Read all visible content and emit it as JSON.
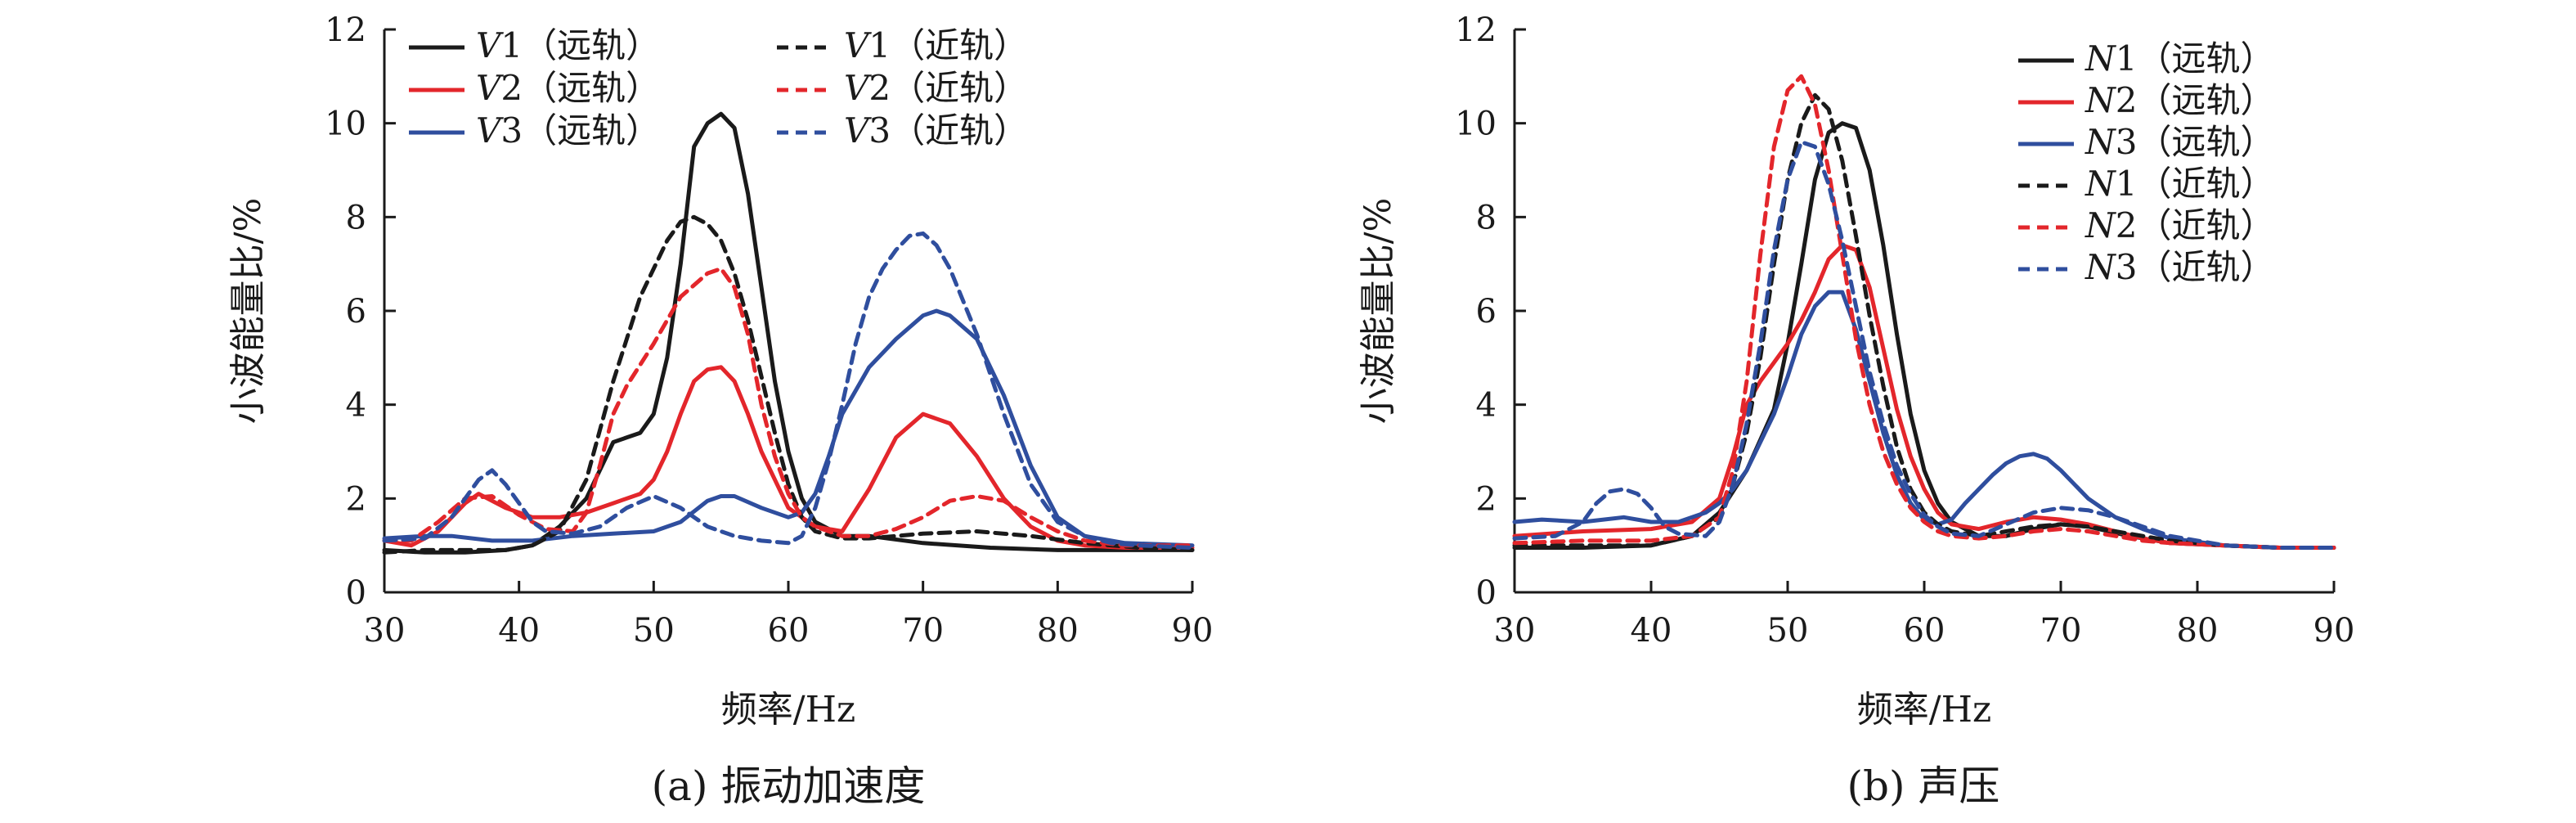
{
  "colors": {
    "black": "#1a1a1a",
    "red": "#e3262b",
    "blue": "#2f4e9e"
  },
  "chart_data": [
    {
      "type": "line",
      "caption": "(a) 振动加速度",
      "xlabel": "频率/Hz",
      "ylabel": "小波能量比/%",
      "xlim": [
        30,
        90
      ],
      "ylim": [
        0,
        12
      ],
      "xticks": [
        "30",
        "40",
        "50",
        "60",
        "70",
        "80",
        "90"
      ],
      "yticks": [
        "0",
        "2",
        "4",
        "6",
        "8",
        "10",
        "12"
      ],
      "legend": [
        {
          "var": "V",
          "idx": "1",
          "note": "（远轨）"
        },
        {
          "var": "V",
          "idx": "2",
          "note": "（远轨）"
        },
        {
          "var": "V",
          "idx": "3",
          "note": "（远轨）"
        },
        {
          "var": "V",
          "idx": "1",
          "note": "（近轨）"
        },
        {
          "var": "V",
          "idx": "2",
          "note": "（近轨）"
        },
        {
          "var": "V",
          "idx": "3",
          "note": "（近轨）"
        }
      ],
      "series": [
        {
          "name": "V1（远轨）",
          "color": "#1a1a1a",
          "dash": "solid",
          "x": [
            30,
            33,
            36,
            39,
            41,
            43,
            45,
            47,
            48,
            49,
            50,
            51,
            52,
            53,
            54,
            55,
            56,
            57,
            58,
            59,
            60,
            61,
            62,
            64,
            66,
            70,
            75,
            80,
            90
          ],
          "y": [
            0.9,
            0.85,
            0.85,
            0.9,
            1.0,
            1.4,
            2.0,
            3.2,
            3.3,
            3.4,
            3.8,
            5.0,
            7.0,
            9.5,
            10.0,
            10.2,
            9.9,
            8.5,
            6.5,
            4.5,
            3.0,
            2.0,
            1.5,
            1.2,
            1.2,
            1.05,
            0.95,
            0.9,
            0.9
          ]
        },
        {
          "name": "V2（远轨）",
          "color": "#e3262b",
          "dash": "solid",
          "x": [
            30,
            32,
            34,
            36,
            37,
            39,
            41,
            43,
            45,
            47,
            49,
            50,
            51,
            52,
            53,
            54,
            55,
            56,
            57,
            58,
            60,
            62,
            64,
            66,
            68,
            70,
            72,
            74,
            76,
            78,
            80,
            82,
            85,
            90
          ],
          "y": [
            1.1,
            1.0,
            1.3,
            1.9,
            2.1,
            1.8,
            1.6,
            1.6,
            1.7,
            1.9,
            2.1,
            2.4,
            3.0,
            3.8,
            4.5,
            4.75,
            4.8,
            4.5,
            3.8,
            3.0,
            1.8,
            1.4,
            1.3,
            2.2,
            3.3,
            3.8,
            3.6,
            2.9,
            2.0,
            1.4,
            1.1,
            1.0,
            0.95,
            0.95
          ]
        },
        {
          "name": "V3（远轨）",
          "color": "#2f4e9e",
          "dash": "solid",
          "x": [
            30,
            33,
            35,
            38,
            41,
            44,
            47,
            50,
            52,
            54,
            55,
            56,
            58,
            60,
            61,
            62,
            63,
            64,
            66,
            68,
            70,
            71,
            72,
            74,
            76,
            78,
            80,
            82,
            85,
            90
          ],
          "y": [
            1.15,
            1.2,
            1.2,
            1.1,
            1.1,
            1.2,
            1.25,
            1.3,
            1.5,
            1.95,
            2.05,
            2.05,
            1.8,
            1.6,
            1.7,
            2.1,
            2.9,
            3.8,
            4.8,
            5.4,
            5.9,
            6.0,
            5.9,
            5.4,
            4.2,
            2.7,
            1.6,
            1.2,
            1.05,
            1.0
          ]
        },
        {
          "name": "V1（近轨）",
          "color": "#1a1a1a",
          "dash": "dashed",
          "x": [
            30,
            33,
            36,
            39,
            41,
            43,
            45,
            47,
            49,
            51,
            52,
            53,
            54,
            55,
            56,
            57,
            58,
            59,
            60,
            61,
            62,
            64,
            66,
            70,
            74,
            78,
            82,
            86,
            90
          ],
          "y": [
            0.85,
            0.9,
            0.9,
            0.9,
            1.0,
            1.3,
            2.4,
            4.5,
            6.3,
            7.5,
            7.9,
            8.0,
            7.85,
            7.5,
            6.8,
            5.8,
            4.6,
            3.4,
            2.3,
            1.6,
            1.3,
            1.15,
            1.15,
            1.25,
            1.3,
            1.2,
            1.05,
            0.95,
            0.9
          ]
        },
        {
          "name": "V2（近轨）",
          "color": "#e3262b",
          "dash": "dashed",
          "x": [
            30,
            32,
            34,
            36,
            38,
            40,
            42,
            44,
            45,
            46,
            47,
            48,
            50,
            52,
            54,
            55,
            56,
            57,
            58,
            59,
            60,
            61,
            62,
            64,
            66,
            68,
            70,
            72,
            74,
            76,
            78,
            80,
            82,
            85,
            90
          ],
          "y": [
            1.1,
            1.1,
            1.5,
            2.0,
            2.05,
            1.65,
            1.35,
            1.3,
            1.7,
            2.7,
            3.8,
            4.4,
            5.3,
            6.3,
            6.8,
            6.9,
            6.5,
            5.5,
            4.0,
            2.9,
            2.1,
            1.6,
            1.4,
            1.2,
            1.2,
            1.35,
            1.6,
            1.95,
            2.05,
            1.95,
            1.6,
            1.3,
            1.1,
            1.0,
            1.0
          ]
        },
        {
          "name": "V3（近轨）",
          "color": "#2f4e9e",
          "dash": "dashed",
          "x": [
            30,
            33,
            35,
            36,
            37,
            38,
            39,
            40,
            41,
            42,
            44,
            46,
            48,
            50,
            52,
            54,
            56,
            58,
            60,
            61,
            62,
            63,
            64,
            65,
            66,
            67,
            68,
            69,
            70,
            71,
            72,
            74,
            76,
            78,
            80,
            82,
            84,
            86,
            90
          ],
          "y": [
            1.1,
            1.15,
            1.6,
            2.0,
            2.4,
            2.6,
            2.3,
            1.9,
            1.5,
            1.3,
            1.25,
            1.4,
            1.8,
            2.05,
            1.8,
            1.4,
            1.2,
            1.1,
            1.05,
            1.2,
            1.8,
            2.8,
            4.0,
            5.3,
            6.3,
            6.9,
            7.3,
            7.6,
            7.65,
            7.4,
            6.9,
            5.5,
            3.8,
            2.3,
            1.5,
            1.2,
            1.05,
            1.0,
            0.95
          ]
        }
      ]
    },
    {
      "type": "line",
      "caption": "(b) 声压",
      "xlabel": "频率/Hz",
      "ylabel": "小波能量比/%",
      "xlim": [
        30,
        90
      ],
      "ylim": [
        0,
        12
      ],
      "xticks": [
        "30",
        "40",
        "50",
        "60",
        "70",
        "80",
        "90"
      ],
      "yticks": [
        "0",
        "2",
        "4",
        "6",
        "8",
        "10",
        "12"
      ],
      "legend": [
        {
          "var": "N",
          "idx": "1",
          "note": "（远轨）"
        },
        {
          "var": "N",
          "idx": "2",
          "note": "（远轨）"
        },
        {
          "var": "N",
          "idx": "3",
          "note": "（远轨）"
        },
        {
          "var": "N",
          "idx": "1",
          "note": "（近轨）"
        },
        {
          "var": "N",
          "idx": "2",
          "note": "（近轨）"
        },
        {
          "var": "N",
          "idx": "3",
          "note": "（近轨）"
        }
      ],
      "series": [
        {
          "name": "N1（远轨）",
          "color": "#1a1a1a",
          "dash": "solid",
          "x": [
            30,
            35,
            40,
            43,
            45,
            47,
            49,
            50,
            51,
            52,
            53,
            54,
            55,
            56,
            57,
            58,
            59,
            60,
            61,
            62,
            64,
            66,
            68,
            70,
            72,
            75,
            78,
            82,
            86,
            90
          ],
          "y": [
            0.95,
            0.95,
            1.0,
            1.2,
            1.7,
            2.6,
            3.9,
            5.3,
            7.0,
            8.8,
            9.8,
            10.0,
            9.9,
            9.0,
            7.4,
            5.5,
            3.8,
            2.6,
            1.9,
            1.5,
            1.2,
            1.2,
            1.35,
            1.45,
            1.4,
            1.2,
            1.05,
            1.0,
            0.95,
            0.95
          ]
        },
        {
          "name": "N2（远轨）",
          "color": "#e3262b",
          "dash": "solid",
          "x": [
            30,
            35,
            40,
            43,
            45,
            46,
            47,
            48,
            49,
            50,
            51,
            52,
            53,
            54,
            55,
            56,
            57,
            58,
            59,
            60,
            61,
            62,
            64,
            66,
            68,
            70,
            72,
            74,
            76,
            78,
            82,
            86,
            90
          ],
          "y": [
            1.2,
            1.3,
            1.35,
            1.5,
            2.0,
            2.9,
            4.0,
            4.5,
            4.9,
            5.3,
            5.8,
            6.4,
            7.1,
            7.4,
            7.3,
            6.5,
            5.2,
            3.9,
            2.9,
            2.2,
            1.7,
            1.45,
            1.35,
            1.5,
            1.6,
            1.55,
            1.45,
            1.3,
            1.15,
            1.05,
            1.0,
            0.95,
            0.95
          ]
        },
        {
          "name": "N3（远轨）",
          "color": "#2f4e9e",
          "dash": "solid",
          "x": [
            30,
            32,
            35,
            38,
            40,
            42,
            44,
            45,
            46,
            47,
            48,
            49,
            50,
            51,
            52,
            53,
            54,
            55,
            56,
            57,
            58,
            59,
            60,
            61,
            62,
            63,
            64,
            65,
            66,
            67,
            68,
            69,
            70,
            72,
            74,
            76,
            78,
            82,
            86,
            90
          ],
          "y": [
            1.5,
            1.55,
            1.5,
            1.6,
            1.5,
            1.5,
            1.7,
            1.9,
            2.2,
            2.6,
            3.2,
            3.8,
            4.6,
            5.5,
            6.1,
            6.4,
            6.4,
            5.6,
            4.5,
            3.4,
            2.5,
            1.9,
            1.55,
            1.45,
            1.55,
            1.9,
            2.2,
            2.5,
            2.75,
            2.9,
            2.95,
            2.85,
            2.6,
            2.0,
            1.6,
            1.35,
            1.15,
            1.0,
            0.95,
            0.95
          ]
        },
        {
          "name": "N1（近轨）",
          "color": "#1a1a1a",
          "dash": "dashed",
          "x": [
            30,
            35,
            40,
            43,
            45,
            46,
            47,
            48,
            49,
            50,
            51,
            52,
            53,
            54,
            55,
            56,
            57,
            58,
            59,
            60,
            61,
            62,
            64,
            66,
            68,
            70,
            72,
            74,
            76,
            78,
            82,
            86,
            90
          ],
          "y": [
            1.0,
            1.0,
            1.0,
            1.2,
            1.6,
            2.3,
            3.4,
            5.0,
            7.0,
            8.8,
            10.0,
            10.6,
            10.3,
            9.2,
            7.6,
            5.9,
            4.4,
            3.1,
            2.2,
            1.7,
            1.45,
            1.3,
            1.2,
            1.3,
            1.4,
            1.45,
            1.4,
            1.3,
            1.2,
            1.1,
            1.0,
            0.95,
            0.95
          ]
        },
        {
          "name": "N2（近轨）",
          "color": "#e3262b",
          "dash": "dashed",
          "x": [
            30,
            35,
            40,
            43,
            45,
            46,
            47,
            48,
            49,
            50,
            51,
            52,
            53,
            54,
            55,
            56,
            57,
            58,
            59,
            60,
            61,
            62,
            64,
            66,
            68,
            70,
            72,
            74,
            76,
            78,
            82,
            86,
            90
          ],
          "y": [
            1.05,
            1.1,
            1.1,
            1.2,
            1.6,
            2.6,
            4.5,
            7.2,
            9.5,
            10.7,
            11.0,
            10.4,
            9.0,
            7.2,
            5.4,
            4.0,
            3.0,
            2.3,
            1.8,
            1.5,
            1.3,
            1.2,
            1.15,
            1.2,
            1.3,
            1.35,
            1.3,
            1.2,
            1.1,
            1.05,
            1.0,
            0.95,
            0.95
          ]
        },
        {
          "name": "N3（近轨）",
          "color": "#2f4e9e",
          "dash": "dashed",
          "x": [
            30,
            33,
            35,
            36,
            37,
            38,
            39,
            40,
            41,
            42,
            44,
            45,
            46,
            47,
            48,
            49,
            50,
            51,
            52,
            53,
            54,
            55,
            56,
            57,
            58,
            59,
            60,
            61,
            62,
            64,
            66,
            68,
            70,
            72,
            74,
            76,
            78,
            82,
            86,
            90
          ],
          "y": [
            1.15,
            1.2,
            1.5,
            1.9,
            2.15,
            2.2,
            2.1,
            1.8,
            1.4,
            1.25,
            1.2,
            1.5,
            2.3,
            3.6,
            5.3,
            7.3,
            8.8,
            9.6,
            9.5,
            8.7,
            7.5,
            6.1,
            4.7,
            3.6,
            2.7,
            2.1,
            1.65,
            1.4,
            1.25,
            1.2,
            1.45,
            1.7,
            1.8,
            1.75,
            1.6,
            1.4,
            1.2,
            1.0,
            0.95,
            0.95
          ]
        }
      ]
    }
  ]
}
